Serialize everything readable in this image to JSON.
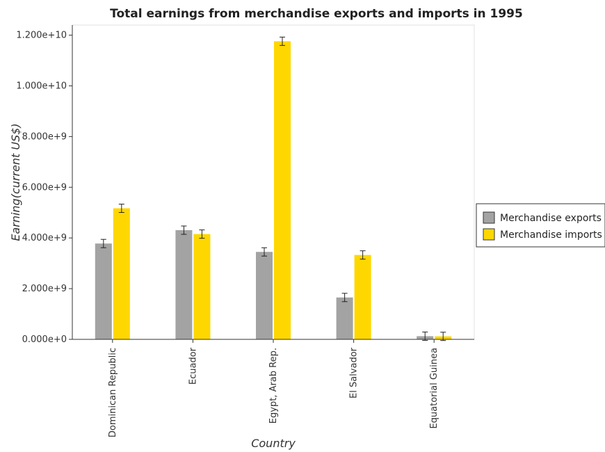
{
  "chart_data": {
    "type": "bar",
    "title": "Total earnings from merchandise exports and imports in 1995",
    "xlabel": "Country",
    "ylabel": "Earning(current US$)",
    "categories": [
      "Dominican Republic",
      "Ecuador",
      "Egypt, Arab Rep.",
      "El Salvador",
      "Equatorial Guinea"
    ],
    "series": [
      {
        "name": "Merchandise exports",
        "color": "#a3a3a3",
        "values": [
          3780000000,
          4307000000,
          3450000000,
          1652000000,
          125000000
        ]
      },
      {
        "name": "Merchandise imports",
        "color": "#ffd700",
        "values": [
          5170000000,
          4153000000,
          11760000000,
          3329000000,
          118000000
        ]
      }
    ],
    "ylim": [
      0,
      12400000000
    ],
    "yticks": [
      0,
      2000000000,
      4000000000,
      6000000000,
      8000000000,
      10000000000,
      12000000000
    ],
    "ytick_labels": [
      "0.000e+0",
      "2.000e+9",
      "4.000e+9",
      "6.000e+9",
      "8.000e+9",
      "1.000e+10",
      "1.200e+10"
    ],
    "grid": false,
    "legend": "right"
  }
}
